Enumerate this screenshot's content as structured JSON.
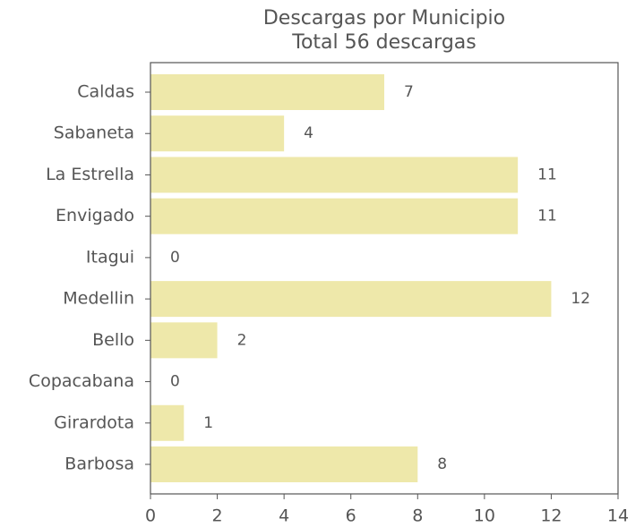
{
  "chart_data": {
    "type": "barh",
    "title": "Descargas por Municipio",
    "subtitle": "Total 56 descargas",
    "categories": [
      "Caldas",
      "Sabaneta",
      "La Estrella",
      "Envigado",
      "Itagui",
      "Medellin",
      "Bello",
      "Copacabana",
      "Girardota",
      "Barbosa"
    ],
    "values": [
      7,
      4,
      11,
      11,
      0,
      12,
      2,
      0,
      1,
      8
    ],
    "color": "#eee8aa",
    "xlim": [
      0,
      14
    ],
    "xticks": [
      0,
      2,
      4,
      6,
      8,
      10,
      12,
      14
    ]
  }
}
